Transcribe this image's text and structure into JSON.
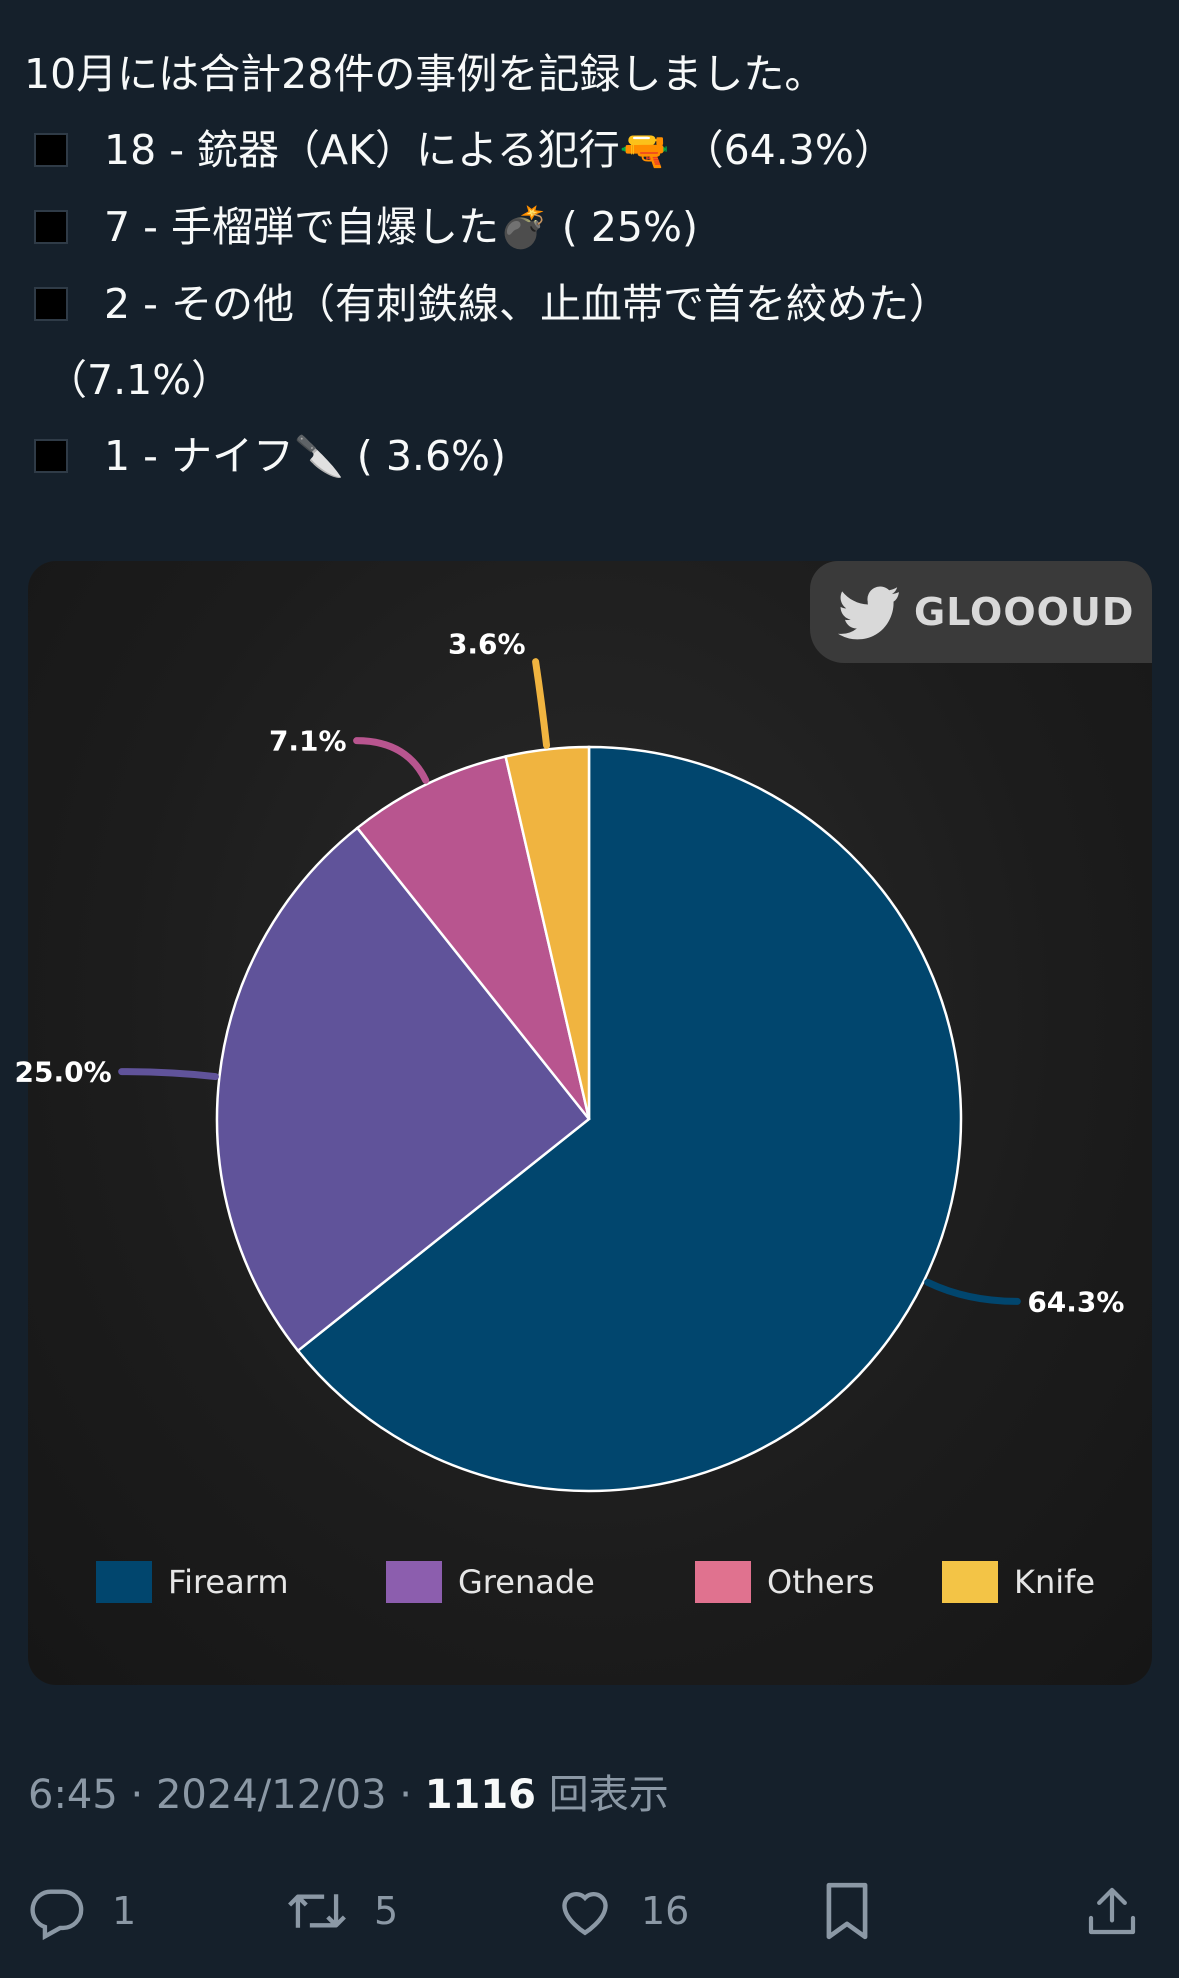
{
  "tweet": {
    "intro": "10月には合計28件の事例を記録しました。",
    "items": [
      {
        "text": "18 - 銃器（AK）による犯行",
        "emoji": "🔫",
        "pct": " （64.3%）"
      },
      {
        "text": "7 - 手榴弾で自爆した",
        "emoji": "💣",
        "pct": " ( 25%)"
      },
      {
        "text": "2 - その他（有刺鉄線、止血帯で首を絞めた）",
        "emoji": "",
        "pct": ""
      },
      {
        "text": "1 - ナイフ",
        "emoji": "🔪",
        "pct": " ( 3.6%)"
      }
    ],
    "item3_continuation": "（7.1%）"
  },
  "image": {
    "watermark": "GLOOOUD",
    "watermark_icon": "bird-icon"
  },
  "chart_data": {
    "type": "pie",
    "categories": [
      "Firearm",
      "Grenade",
      "Others",
      "Knife"
    ],
    "values": [
      64.3,
      25.0,
      7.1,
      3.6
    ],
    "data_labels": [
      "64.3%",
      "25.0%",
      "7.1%",
      "3.6%"
    ],
    "colors": [
      "#01466e",
      "#60539a",
      "#b8558f",
      "#f0b440"
    ],
    "legend_colors": [
      "#01466e",
      "#8c5eae",
      "#e0728f",
      "#f3c446"
    ],
    "legend_position": "bottom",
    "start": "12 o'clock, counter-clockwise from Firearm ending at top"
  },
  "meta": {
    "time": "6:45",
    "date": "2024/12/03",
    "views_count": "1116",
    "views_label": "回表示"
  },
  "actions": {
    "reply_count": "1",
    "retweet_count": "5",
    "like_count": "16"
  },
  "colors": {
    "background": "#15202b",
    "text": "#f7f9f9",
    "secondary": "#8b98a5"
  }
}
